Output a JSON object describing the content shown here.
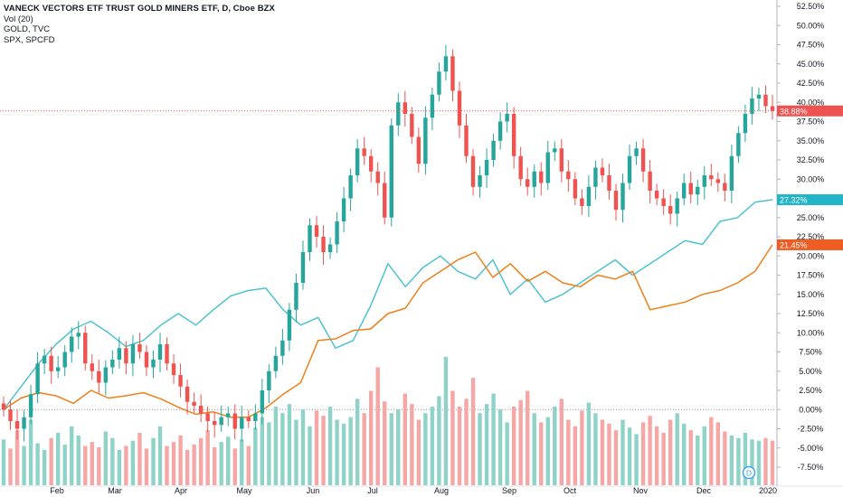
{
  "legend": {
    "title": "VANECK VECTORS ETF TRUST GOLD MINERS ETF, D, Cboe BZX",
    "line2": "Vol (20)",
    "line3": "GOLD, TVC",
    "line4": "SPX, SPCFD"
  },
  "colors": {
    "up": "#26a69a",
    "down": "#ef5350",
    "vol_up": "#8fd3c8",
    "vol_down": "#f5a7a5",
    "gold_line": "#4ec3d0",
    "spx_line": "#f07f16",
    "price_line": "#ef5350",
    "axis_text": "#131722",
    "grid": "#e9edf2"
  },
  "markers": {
    "dividend": "D"
  },
  "chart_data": {
    "type": "line",
    "title": "VANECK VECTORS ETF TRUST GOLD MINERS ETF, D, Cboe BZX",
    "y_axis": {
      "unit": "percent",
      "range": [
        -9,
        54
      ],
      "ticks": [
        "52.50%",
        "50.00%",
        "47.50%",
        "45.00%",
        "42.50%",
        "40.00%",
        "37.50%",
        "35.00%",
        "32.50%",
        "30.00%",
        "27.50%",
        "25.00%",
        "22.50%",
        "20.00%",
        "17.50%",
        "15.00%",
        "12.50%",
        "10.00%",
        "7.50%",
        "5.00%",
        "2.50%",
        "0.00%",
        "-2.50%",
        "-5.00%",
        "-7.50%"
      ]
    },
    "x_axis": {
      "labels": [
        "Feb",
        "Mar",
        "Apr",
        "May",
        "Jun",
        "Jul",
        "Aug",
        "Sep",
        "Oct",
        "Nov",
        "Dec",
        "2020"
      ]
    },
    "last_values": {
      "GDX": "38.88%",
      "GOLD": "27.32%",
      "SPX": "21.45%"
    },
    "series": [
      {
        "name": "GOLD, TVC",
        "type": "line",
        "values": [
          0.0,
          3.0,
          6.0,
          8.5,
          10.5,
          11.5,
          10.0,
          8.2,
          9.0,
          11.0,
          12.5,
          11.0,
          13.0,
          14.8,
          15.5,
          15.8,
          13.0,
          11.0,
          12.0,
          8.0,
          9.0,
          13.5,
          19.0,
          16.0,
          18.5,
          20.0,
          18.0,
          17.0,
          19.5,
          15.0,
          17.0,
          14.0,
          15.0,
          16.5,
          18.0,
          19.5,
          17.5,
          19.0,
          20.5,
          22.0,
          21.5,
          24.5,
          25.0,
          27.0,
          27.32
        ]
      },
      {
        "name": "SPX, SPCFD",
        "type": "line",
        "values": [
          0.0,
          1.5,
          2.2,
          1.8,
          0.8,
          2.5,
          1.5,
          1.8,
          2.2,
          1.4,
          0.3,
          -0.6,
          -0.3,
          -1.0,
          -1.0,
          0.2,
          2.0,
          3.5,
          9.0,
          9.2,
          10.3,
          10.5,
          12.5,
          13.2,
          16.5,
          18.0,
          19.5,
          20.5,
          17.2,
          19.0,
          16.7,
          18.0,
          16.5,
          16.0,
          17.5,
          17.0,
          18.0,
          13.0,
          13.5,
          14.0,
          15.0,
          15.5,
          16.5,
          18.0,
          21.45
        ]
      },
      {
        "name": "VANECK VECTORS ETF TRUST GOLD MINERS ETF",
        "type": "candlestick",
        "closes": [
          0.0,
          -1.5,
          -2.5,
          -1.0,
          2.0,
          6.0,
          7.0,
          5.0,
          5.5,
          7.5,
          9.5,
          10.0,
          6.0,
          5.0,
          3.5,
          5.5,
          6.5,
          8.0,
          6.0,
          8.5,
          7.5,
          5.5,
          6.5,
          8.5,
          6.0,
          4.5,
          3.0,
          1.0,
          0.5,
          -0.5,
          -1.5,
          -2.0,
          -1.0,
          -0.5,
          -2.5,
          -1.0,
          -1.5,
          -0.5,
          2.5,
          5.0,
          7.0,
          9.0,
          13.0,
          16.5,
          20.5,
          24.0,
          22.5,
          20.5,
          21.5,
          24.5,
          27.5,
          30.5,
          34.0,
          33.0,
          31.0,
          29.5,
          25.0,
          37.0,
          40.0,
          38.5,
          35.5,
          32.0,
          38.0,
          41.0,
          44.0,
          46.0,
          41.5,
          37.0,
          33.0,
          29.0,
          30.5,
          32.5,
          35.0,
          37.5,
          38.5,
          33.0,
          30.0,
          29.0,
          31.0,
          29.5,
          33.5,
          34.0,
          31.0,
          30.0,
          27.5,
          26.5,
          29.0,
          31.5,
          30.5,
          28.5,
          26.0,
          29.5,
          33.0,
          34.0,
          31.0,
          28.5,
          27.5,
          26.5,
          25.5,
          27.5,
          29.5,
          28.0,
          29.0,
          30.5,
          30.0,
          29.5,
          28.5,
          33.0,
          36.0,
          38.5,
          40.5,
          41.0,
          39.5,
          38.88
        ]
      }
    ],
    "volume": {
      "name": "Vol (20)",
      "values": [
        0.35,
        0.28,
        0.42,
        0.3,
        0.5,
        0.32,
        0.27,
        0.36,
        0.4,
        0.31,
        0.45,
        0.38,
        0.3,
        0.33,
        0.29,
        0.41,
        0.36,
        0.27,
        0.3,
        0.34,
        0.4,
        0.28,
        0.36,
        0.45,
        0.3,
        0.33,
        0.38,
        0.27,
        0.31,
        0.36,
        0.42,
        0.29,
        0.33,
        0.37,
        0.28,
        0.35,
        0.3,
        0.44,
        0.52,
        0.48,
        0.6,
        0.55,
        0.62,
        0.5,
        0.58,
        0.45,
        0.57,
        0.53,
        0.6,
        0.5,
        0.47,
        0.52,
        0.66,
        0.55,
        0.72,
        0.9,
        0.64,
        0.55,
        0.58,
        0.7,
        0.62,
        0.5,
        0.55,
        0.6,
        0.68,
        0.98,
        0.72,
        0.6,
        0.66,
        0.82,
        0.55,
        0.62,
        0.7,
        0.58,
        0.48,
        0.6,
        0.65,
        0.72,
        0.55,
        0.48,
        0.52,
        0.6,
        0.66,
        0.5,
        0.45,
        0.57,
        0.63,
        0.55,
        0.5,
        0.47,
        0.42,
        0.5,
        0.44,
        0.39,
        0.48,
        0.53,
        0.45,
        0.4,
        0.5,
        0.55,
        0.47,
        0.42,
        0.38,
        0.45,
        0.52,
        0.48,
        0.41,
        0.38,
        0.36,
        0.4,
        0.35,
        0.34,
        0.36,
        0.34
      ]
    }
  }
}
